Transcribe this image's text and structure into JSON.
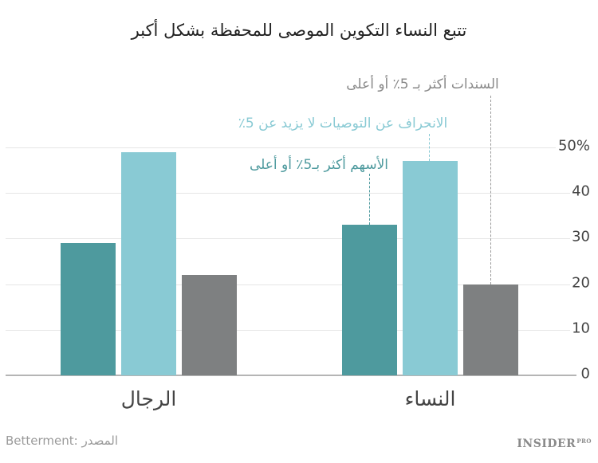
{
  "title": "تتبع النساء  التكوين الموصى للمحفظة بشكل أكبر",
  "chart_data": {
    "type": "bar",
    "title": "تتبع النساء  التكوين الموصى للمحفظة بشكل أكبر",
    "categories": [
      "النساء",
      "الرجال"
    ],
    "series": [
      {
        "name": "الأسهم أكثر بـ5٪ أو أعلى",
        "color": "#4e9a9e",
        "values": [
          33,
          29
        ]
      },
      {
        "name": "الانحراف عن التوصيات لا يزيد عن 5٪",
        "color": "#89cad4",
        "values": [
          47,
          49
        ]
      },
      {
        "name": "السندات أكثر بـ 5٪ أو أعلى",
        "color": "#7e8081",
        "values": [
          20,
          22
        ]
      }
    ],
    "xlabel": "",
    "ylabel": "",
    "ylim": [
      0,
      50
    ],
    "yticks": [
      "50%",
      "40",
      "30",
      "20",
      "10",
      "0"
    ],
    "grid": true,
    "legend_position": "inline annotations with dashed leader lines above women's bars",
    "axis_side": "right"
  },
  "annotations": {
    "bonds": "السندات أكثر بـ 5٪ أو أعلى",
    "within": "الانحراف عن التوصيات لا يزيد عن 5٪",
    "stocks": "الأسهم أكثر بـ5٪ أو أعلى"
  },
  "footer": {
    "source": "Betterment: المصدر",
    "brand": "INSIDER",
    "brand_suffix": "PRO"
  }
}
